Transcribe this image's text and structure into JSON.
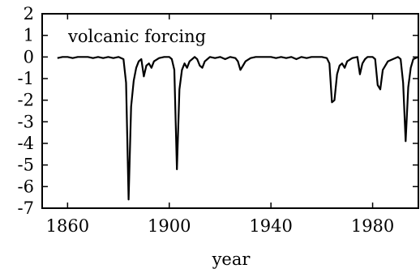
{
  "chart_data": {
    "type": "line",
    "title": "",
    "xlabel": "year",
    "ylabel": "",
    "annotation": "volcanic forcing",
    "xlim": [
      1850,
      1998
    ],
    "ylim": [
      -7,
      2
    ],
    "xticks": [
      1860,
      1900,
      1940,
      1980
    ],
    "yticks": [
      2,
      1,
      0,
      -1,
      -2,
      -3,
      -4,
      -5,
      -6,
      -7
    ],
    "grid": false,
    "series": [
      {
        "name": "",
        "color": "#000000",
        "x": [
          1856,
          1858,
          1860,
          1862,
          1864,
          1866,
          1868,
          1870,
          1872,
          1874,
          1876,
          1878,
          1880,
          1882,
          1883,
          1884,
          1885,
          1886,
          1887,
          1888,
          1889,
          1890,
          1891,
          1892,
          1893,
          1894,
          1896,
          1898,
          1900,
          1901,
          1902,
          1903,
          1904,
          1905,
          1906,
          1907,
          1908,
          1909,
          1910,
          1911,
          1912,
          1913,
          1914,
          1916,
          1918,
          1920,
          1922,
          1924,
          1926,
          1927,
          1928,
          1929,
          1930,
          1932,
          1934,
          1936,
          1938,
          1940,
          1942,
          1944,
          1946,
          1948,
          1950,
          1952,
          1954,
          1956,
          1958,
          1960,
          1962,
          1963,
          1964,
          1965,
          1966,
          1967,
          1968,
          1969,
          1970,
          1972,
          1974,
          1975,
          1976,
          1977,
          1978,
          1980,
          1981,
          1982,
          1983,
          1984,
          1986,
          1988,
          1990,
          1991,
          1992,
          1993,
          1994,
          1995,
          1996,
          1998
        ],
        "y": [
          -0.05,
          0.0,
          0.0,
          -0.05,
          0.0,
          0.0,
          0.0,
          -0.05,
          0.0,
          -0.05,
          0.0,
          -0.05,
          0.0,
          -0.1,
          -1.2,
          -6.6,
          -2.3,
          -1.1,
          -0.5,
          -0.2,
          -0.1,
          -0.9,
          -0.4,
          -0.3,
          -0.5,
          -0.2,
          -0.05,
          0.0,
          0.0,
          -0.1,
          -0.6,
          -5.2,
          -1.5,
          -0.6,
          -0.3,
          -0.5,
          -0.2,
          -0.1,
          0.0,
          -0.1,
          -0.4,
          -0.5,
          -0.2,
          0.0,
          -0.05,
          0.0,
          -0.1,
          0.0,
          -0.05,
          -0.2,
          -0.6,
          -0.4,
          -0.2,
          -0.05,
          0.0,
          0.0,
          0.0,
          0.0,
          -0.05,
          0.0,
          -0.05,
          0.0,
          -0.1,
          0.0,
          -0.05,
          0.0,
          0.0,
          0.0,
          -0.05,
          -0.3,
          -2.1,
          -2.0,
          -0.8,
          -0.4,
          -0.3,
          -0.5,
          -0.2,
          -0.05,
          0.0,
          -0.8,
          -0.3,
          -0.1,
          0.0,
          0.0,
          -0.1,
          -1.3,
          -1.5,
          -0.6,
          -0.2,
          -0.1,
          0.0,
          -0.1,
          -1.2,
          -3.9,
          -1.4,
          -0.5,
          -0.1,
          0.0
        ]
      }
    ]
  }
}
